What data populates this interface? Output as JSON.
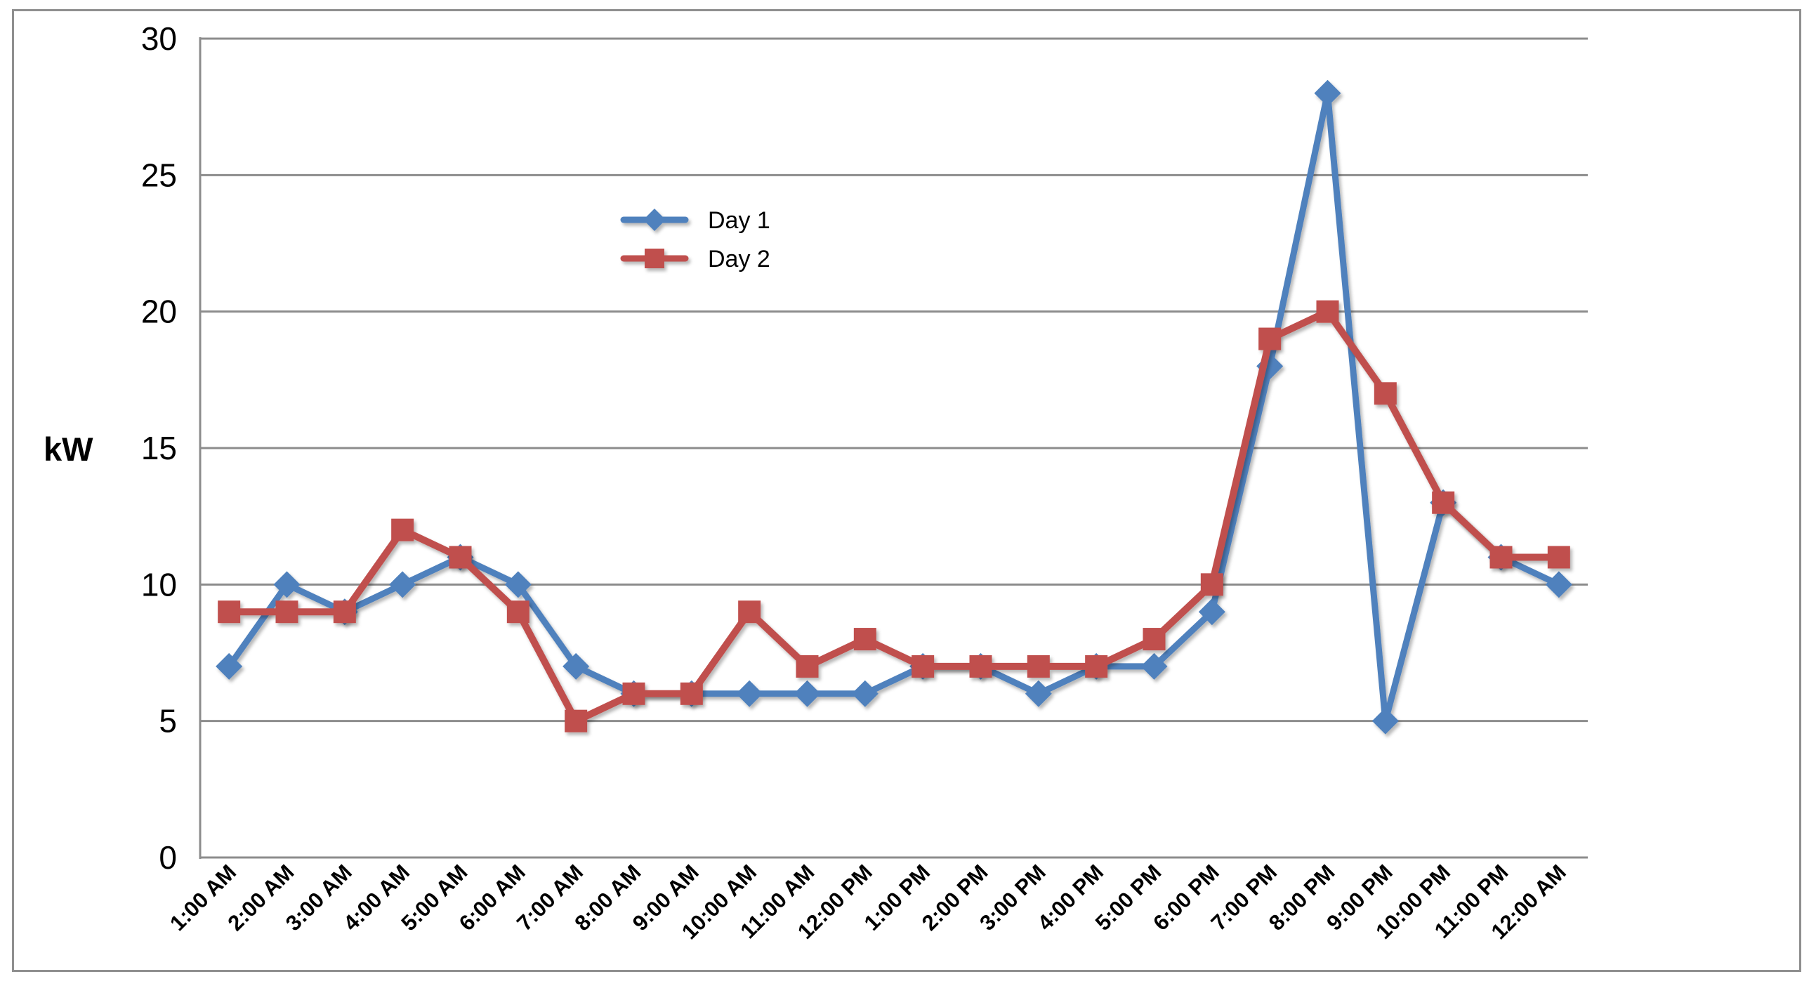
{
  "page": {
    "background": "#ffffff",
    "border_color": "#8f8f8f"
  },
  "chart_data": {
    "type": "line",
    "title": "",
    "ylabel": "kW",
    "xlabel": "",
    "categories": [
      "1:00 AM",
      "2:00 AM",
      "3:00 AM",
      "4:00 AM",
      "5:00 AM",
      "6:00 AM",
      "7:00 AM",
      "8:00 AM",
      "9:00 AM",
      "10:00 AM",
      "11:00 AM",
      "12:00 PM",
      "1:00 PM",
      "2:00 PM",
      "3:00 PM",
      "4:00 PM",
      "5:00 PM",
      "6:00 PM",
      "7:00 PM",
      "8:00 PM",
      "9:00 PM",
      "10:00 PM",
      "11:00 PM",
      "12:00 AM"
    ],
    "series": [
      {
        "name": "Day 1",
        "color": "#4F81BD",
        "marker": "diamond",
        "values": [
          7,
          10,
          9,
          10,
          11,
          10,
          7,
          6,
          6,
          6,
          6,
          6,
          7,
          7,
          6,
          7,
          7,
          9,
          18,
          28,
          5,
          13,
          11,
          10
        ]
      },
      {
        "name": "Day 2",
        "color": "#C0504D",
        "marker": "square",
        "values": [
          9,
          9,
          9,
          12,
          11,
          9,
          5,
          6,
          6,
          9,
          7,
          8,
          7,
          7,
          7,
          7,
          8,
          10,
          19,
          20,
          17,
          13,
          11,
          11
        ]
      }
    ],
    "ylim": [
      0,
      30
    ],
    "yticks": [
      0,
      5,
      10,
      15,
      20,
      25,
      30
    ],
    "grid": true,
    "legend_position": "inside-upper-left",
    "gridline_color": "#8c8c8c",
    "axis_line_color": "#8c8c8c",
    "text_color": "#000000"
  }
}
